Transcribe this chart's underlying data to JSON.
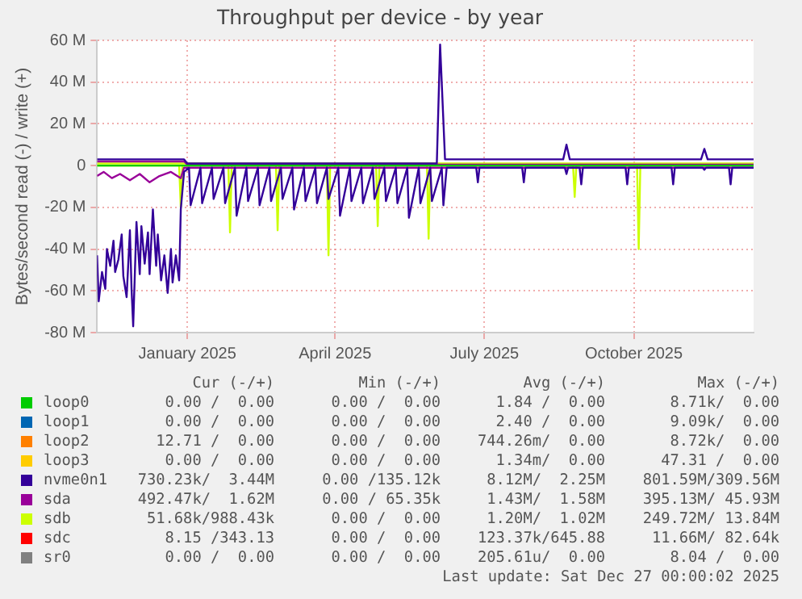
{
  "chart_data": {
    "type": "line",
    "title": "Throughput per device - by year",
    "ylabel": "Bytes/second read (-) / write (+)",
    "xlim": [
      "2024-11-22",
      "2025-12-27"
    ],
    "xticks": [
      {
        "value": "2025-01-16",
        "label": "January 2025"
      },
      {
        "value": "2025-04-16",
        "label": "April 2025"
      },
      {
        "value": "2025-07-16",
        "label": "July 2025"
      },
      {
        "value": "2025-10-15",
        "label": "October 2025"
      }
    ],
    "ylim": [
      -80,
      60
    ],
    "yticks": [
      {
        "value": -80,
        "label": "-80 M"
      },
      {
        "value": -60,
        "label": "-60 M"
      },
      {
        "value": -40,
        "label": "-40 M"
      },
      {
        "value": -20,
        "label": "-20 M"
      },
      0,
      {
        "value": 20,
        "label": "20 M"
      },
      {
        "value": 40,
        "label": "40 M"
      },
      {
        "value": 60,
        "label": "60 M"
      }
    ],
    "grid": true,
    "legend": "bottom",
    "marker": "none",
    "series": [
      {
        "name": "loop0",
        "color": "#00cc00",
        "x": [
          "2024-11-22",
          "2025-12-27"
        ],
        "values": [
          0,
          0
        ]
      },
      {
        "name": "loop1",
        "color": "#0066b3"
      },
      {
        "name": "loop2",
        "color": "#ff8000"
      },
      {
        "name": "loop3",
        "color": "#ffcc00"
      },
      {
        "name": "nvme0n1",
        "color": "#330099",
        "x": [
          "2024-11-22",
          "2024-11-23",
          "2024-11-25",
          "2024-11-27",
          "2024-11-28",
          "2024-11-30",
          "2024-12-02",
          "2024-12-03",
          "2024-12-05",
          "2024-12-07",
          "2024-12-08",
          "2024-12-10",
          "2024-12-12",
          "2024-12-13",
          "2024-12-14",
          "2024-12-16",
          "2024-12-18",
          "2024-12-19",
          "2024-12-21",
          "2024-12-23",
          "2024-12-24",
          "2024-12-26",
          "2024-12-28",
          "2024-12-29",
          "2024-12-31",
          "2025-01-02",
          "2025-01-04",
          "2025-01-06",
          "2025-01-07",
          "2025-01-09",
          "2025-01-11",
          "2025-01-12",
          "2025-01-14",
          "2025-01-17",
          "2025-01-18",
          "2025-01-24",
          "2025-01-25",
          "2025-01-31",
          "2025-02-01",
          "2025-02-07",
          "2025-02-08",
          "2025-02-14",
          "2025-02-15",
          "2025-02-21",
          "2025-02-22",
          "2025-02-28",
          "2025-03-01",
          "2025-03-07",
          "2025-03-08",
          "2025-03-14",
          "2025-03-15",
          "2025-03-21",
          "2025-03-22",
          "2025-03-28",
          "2025-03-29",
          "2025-04-04",
          "2025-04-05",
          "2025-04-11",
          "2025-04-12",
          "2025-04-18",
          "2025-04-19",
          "2025-04-25",
          "2025-04-26",
          "2025-05-02",
          "2025-05-03",
          "2025-05-09",
          "2025-05-10",
          "2025-05-16",
          "2025-05-17",
          "2025-05-23",
          "2025-05-24",
          "2025-05-30",
          "2025-05-31",
          "2025-06-06",
          "2025-06-07",
          "2025-06-13",
          "2025-06-14",
          "2025-06-20",
          "2025-06-21",
          "2025-06-23",
          "2025-07-11",
          "2025-07-12",
          "2025-07-13",
          "2025-08-08",
          "2025-08-09",
          "2025-08-10",
          "2025-09-03",
          "2025-09-04",
          "2025-09-05",
          "2025-09-12",
          "2025-09-13",
          "2025-09-14",
          "2025-10-10",
          "2025-10-11",
          "2025-10-12",
          "2025-11-07",
          "2025-11-08",
          "2025-11-09",
          "2025-11-26",
          "2025-11-27",
          "2025-11-28",
          "2025-12-12",
          "2025-12-13",
          "2025-12-14",
          "2025-12-27"
        ],
        "values": [
          -43,
          -65,
          -51,
          -59,
          -40,
          -48,
          -36,
          -51,
          -45,
          -33,
          -53,
          -63,
          -31,
          -59,
          -77,
          -27,
          -52,
          -29,
          -47,
          -32,
          -52,
          -21,
          -48,
          -33,
          -55,
          -43,
          -61,
          -40,
          -56,
          -43,
          -55,
          -21,
          -3,
          -1,
          -19,
          -1,
          -18,
          -1,
          -16,
          -1,
          -18,
          -1,
          -24,
          -1,
          -17,
          -1,
          -19,
          -1,
          -17,
          -1,
          -16,
          -1,
          -21,
          -1,
          -17,
          -1,
          -18,
          -1,
          -16,
          -1,
          -24,
          -1,
          -17,
          -1,
          -18,
          -1,
          -16,
          -1,
          -17,
          -1,
          -18,
          -1,
          -25,
          -1,
          -18,
          -1,
          -17,
          -1,
          -19,
          -1,
          -1,
          -8,
          -1,
          -1,
          -8,
          -1,
          -1,
          -4,
          -1,
          -1,
          -9,
          -1,
          -1,
          -9,
          -1,
          -1,
          -9,
          -1,
          -1,
          -2,
          -1,
          -1,
          -9,
          -1,
          -1
        ]
      },
      {
        "name": "sda",
        "color": "#990099",
        "x": [
          "2024-11-22",
          "2024-11-26",
          "2024-12-01",
          "2024-12-06",
          "2024-12-12",
          "2024-12-18",
          "2024-12-24",
          "2024-12-30",
          "2025-01-06",
          "2025-01-12",
          "2025-01-14",
          "2025-12-27"
        ],
        "values": [
          -5,
          -3,
          -6,
          -4,
          -7,
          -4,
          -8,
          -5,
          -3,
          -6,
          -1,
          -1
        ]
      },
      {
        "name": "sdb",
        "color": "#ccff00",
        "x": [
          "2024-11-22",
          "2025-01-11",
          "2025-01-12",
          "2025-01-13",
          "2025-02-10",
          "2025-02-11",
          "2025-02-12",
          "2025-03-11",
          "2025-03-12",
          "2025-03-13",
          "2025-04-11",
          "2025-04-12",
          "2025-04-13",
          "2025-05-11",
          "2025-05-12",
          "2025-05-13",
          "2025-06-11",
          "2025-06-12",
          "2025-06-13",
          "2025-09-08",
          "2025-09-09",
          "2025-09-10",
          "2025-10-17",
          "2025-10-18",
          "2025-10-19",
          "2025-12-27"
        ],
        "values": [
          0,
          0,
          -20,
          0,
          0,
          -32,
          0,
          0,
          -31,
          0,
          0,
          -43,
          0,
          0,
          -29,
          0,
          0,
          -35,
          0,
          0,
          -15,
          0,
          0,
          -40,
          0,
          0
        ]
      },
      {
        "name": "sdc",
        "color": "#ff0000"
      },
      {
        "name": "sr0",
        "color": "#808080"
      },
      {
        "color": "#330099",
        "x": [
          "2024-11-22",
          "2025-01-14",
          "2025-01-16",
          "2025-06-17",
          "2025-06-19",
          "2025-06-22",
          "2025-09-02",
          "2025-09-04",
          "2025-09-06",
          "2025-11-25",
          "2025-11-27",
          "2025-11-29",
          "2025-12-27"
        ],
        "values": [
          3,
          3,
          1,
          1,
          58,
          3,
          3,
          10,
          3,
          3,
          8,
          3,
          3
        ]
      },
      {
        "color": "#990099",
        "x": [
          "2024-11-22",
          "2025-01-14",
          "2025-01-16",
          "2025-12-27"
        ],
        "values": [
          2,
          2,
          0.5,
          0.5
        ]
      },
      {
        "color": "#ccff00",
        "x": [
          "2024-11-22",
          "2025-12-27"
        ],
        "values": [
          1,
          1
        ]
      }
    ],
    "annotations": [
      "Cur (-/+)    Min (-/+)    Avg (-/+)    Max (-/+)",
      "0.00 /  0.00    0.00 /  0.00    1.84 /  0.00    8.71k/  0.00",
      "0.00 /  0.00    0.00 /  0.00    2.40 /  0.00    9.09k/  0.00",
      "12.71 /  0.00    0.00 /  0.00    744.26m/  0.00    8.72k/  0.00",
      "0.00 /  0.00    0.00 /  0.00    1.34m/  0.00    47.31 /  0.00",
      "730.23k/  3.44M    0.00 /135.12k    8.12M/  2.25M    801.59M/309.56M",
      "492.47k/  1.62M    0.00 / 65.35k    1.43M/  1.58M    395.13M/ 45.93M",
      "51.68k/988.43k    0.00 /  0.00    1.20M/  1.02M    249.72M/ 13.84M",
      "8.15 /343.13    0.00 /  0.00    123.37k/645.88    11.66M/ 82.64k",
      "0.00 /  0.00    0.00 /  0.00    205.61u/  0.00    8.04 /  0.00",
      "Last update: Sat Dec 27 00:00:02 2025"
    ]
  }
}
